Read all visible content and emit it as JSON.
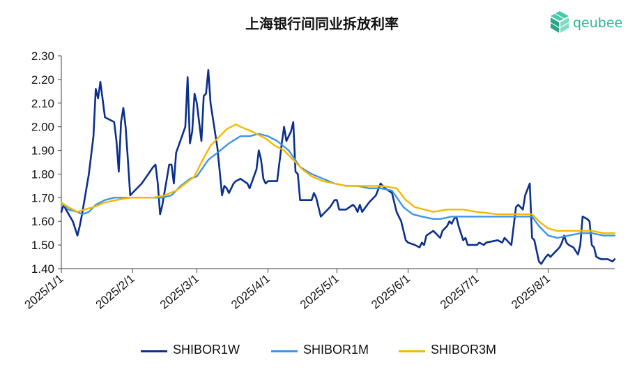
{
  "chart_data": {
    "type": "line",
    "title": "上海银行间同业拆放利率",
    "xlabel": "",
    "ylabel": "",
    "ylim": [
      1.4,
      2.3
    ],
    "xlim": [
      "2025-01-01",
      "2025-08-30"
    ],
    "yticks": [
      "2.30",
      "2.20",
      "2.10",
      "2.00",
      "1.90",
      "1.80",
      "1.70",
      "1.60",
      "1.50",
      "1.40"
    ],
    "xticks": [
      {
        "label": "2025/1/1",
        "date": "2025-01-01"
      },
      {
        "label": "2025/2/1",
        "date": "2025-02-01"
      },
      {
        "label": "2025/3/1",
        "date": "2025-03-01"
      },
      {
        "label": "2025/4/1",
        "date": "2025-04-01"
      },
      {
        "label": "2025/5/1",
        "date": "2025-05-01"
      },
      {
        "label": "2025/6/1",
        "date": "2025-06-01"
      },
      {
        "label": "2025/7/1",
        "date": "2025-07-01"
      },
      {
        "label": "2025/8/1",
        "date": "2025-08-01"
      }
    ],
    "legend_position": "bottom",
    "grid": false,
    "series": [
      {
        "name": "SHIBOR1W",
        "color": "#0a2f8c",
        "points": [
          [
            "2025-01-01",
            1.64
          ],
          [
            "2025-01-02",
            1.67
          ],
          [
            "2025-01-03",
            1.65
          ],
          [
            "2025-01-06",
            1.6
          ],
          [
            "2025-01-08",
            1.54
          ],
          [
            "2025-01-09",
            1.58
          ],
          [
            "2025-01-10",
            1.63
          ],
          [
            "2025-01-13",
            1.8
          ],
          [
            "2025-01-15",
            1.96
          ],
          [
            "2025-01-16",
            2.16
          ],
          [
            "2025-01-17",
            2.12
          ],
          [
            "2025-01-18",
            2.19
          ],
          [
            "2025-01-20",
            2.04
          ],
          [
            "2025-01-24",
            2.02
          ],
          [
            "2025-01-25",
            1.94
          ],
          [
            "2025-01-26",
            1.81
          ],
          [
            "2025-01-27",
            2.02
          ],
          [
            "2025-01-28",
            2.08
          ],
          [
            "2025-01-29",
            2.0
          ],
          [
            "2025-01-30",
            1.86
          ],
          [
            "2025-01-31",
            1.71
          ],
          [
            "2025-02-05",
            1.76
          ],
          [
            "2025-02-10",
            1.83
          ],
          [
            "2025-02-11",
            1.84
          ],
          [
            "2025-02-12",
            1.76
          ],
          [
            "2025-02-13",
            1.63
          ],
          [
            "2025-02-14",
            1.67
          ],
          [
            "2025-02-17",
            1.84
          ],
          [
            "2025-02-18",
            1.84
          ],
          [
            "2025-02-19",
            1.76
          ],
          [
            "2025-02-20",
            1.89
          ],
          [
            "2025-02-24",
            2.0
          ],
          [
            "2025-02-25",
            2.21
          ],
          [
            "2025-02-26",
            1.93
          ],
          [
            "2025-02-27",
            1.98
          ],
          [
            "2025-02-28",
            2.14
          ],
          [
            "2025-03-01",
            2.1
          ],
          [
            "2025-03-03",
            1.94
          ],
          [
            "2025-03-04",
            2.13
          ],
          [
            "2025-03-05",
            2.14
          ],
          [
            "2025-03-06",
            2.24
          ],
          [
            "2025-03-07",
            2.1
          ],
          [
            "2025-03-10",
            1.91
          ],
          [
            "2025-03-11",
            1.81
          ],
          [
            "2025-03-12",
            1.71
          ],
          [
            "2025-03-13",
            1.75
          ],
          [
            "2025-03-14",
            1.74
          ],
          [
            "2025-03-15",
            1.72
          ],
          [
            "2025-03-17",
            1.76
          ],
          [
            "2025-03-18",
            1.77
          ],
          [
            "2025-03-20",
            1.78
          ],
          [
            "2025-03-23",
            1.76
          ],
          [
            "2025-03-24",
            1.74
          ],
          [
            "2025-03-27",
            1.82
          ],
          [
            "2025-03-28",
            1.9
          ],
          [
            "2025-03-29",
            1.86
          ],
          [
            "2025-03-30",
            1.78
          ],
          [
            "2025-03-31",
            1.76
          ],
          [
            "2025-04-01",
            1.77
          ],
          [
            "2025-04-05",
            1.77
          ],
          [
            "2025-04-07",
            1.93
          ],
          [
            "2025-04-08",
            2.0
          ],
          [
            "2025-04-09",
            1.94
          ],
          [
            "2025-04-11",
            1.98
          ],
          [
            "2025-04-12",
            2.02
          ],
          [
            "2025-04-13",
            1.81
          ],
          [
            "2025-04-14",
            1.8
          ],
          [
            "2025-04-15",
            1.69
          ],
          [
            "2025-04-20",
            1.69
          ],
          [
            "2025-04-21",
            1.72
          ],
          [
            "2025-04-22",
            1.7
          ],
          [
            "2025-04-24",
            1.62
          ],
          [
            "2025-04-28",
            1.66
          ],
          [
            "2025-04-30",
            1.69
          ],
          [
            "2025-05-01",
            1.69
          ],
          [
            "2025-05-02",
            1.65
          ],
          [
            "2025-05-05",
            1.65
          ],
          [
            "2025-05-08",
            1.67
          ],
          [
            "2025-05-09",
            1.66
          ],
          [
            "2025-05-10",
            1.64
          ],
          [
            "2025-05-11",
            1.67
          ],
          [
            "2025-05-12",
            1.64
          ],
          [
            "2025-05-15",
            1.68
          ],
          [
            "2025-05-18",
            1.71
          ],
          [
            "2025-05-20",
            1.76
          ],
          [
            "2025-05-22",
            1.74
          ],
          [
            "2025-05-25",
            1.72
          ],
          [
            "2025-05-27",
            1.64
          ],
          [
            "2025-05-29",
            1.6
          ],
          [
            "2025-05-31",
            1.52
          ],
          [
            "2025-06-01",
            1.51
          ],
          [
            "2025-06-04",
            1.5
          ],
          [
            "2025-06-06",
            1.49
          ],
          [
            "2025-06-07",
            1.51
          ],
          [
            "2025-06-08",
            1.5
          ],
          [
            "2025-06-09",
            1.54
          ],
          [
            "2025-06-12",
            1.56
          ],
          [
            "2025-06-15",
            1.53
          ],
          [
            "2025-06-16",
            1.56
          ],
          [
            "2025-06-18",
            1.58
          ],
          [
            "2025-06-19",
            1.6
          ],
          [
            "2025-06-20",
            1.59
          ],
          [
            "2025-06-21",
            1.61
          ],
          [
            "2025-06-22",
            1.62
          ],
          [
            "2025-06-23",
            1.58
          ],
          [
            "2025-06-25",
            1.52
          ],
          [
            "2025-06-26",
            1.53
          ],
          [
            "2025-06-27",
            1.5
          ],
          [
            "2025-07-01",
            1.5
          ],
          [
            "2025-07-02",
            1.51
          ],
          [
            "2025-07-04",
            1.5
          ],
          [
            "2025-07-05",
            1.51
          ],
          [
            "2025-07-10",
            1.52
          ],
          [
            "2025-07-12",
            1.51
          ],
          [
            "2025-07-13",
            1.53
          ],
          [
            "2025-07-16",
            1.5
          ],
          [
            "2025-07-17",
            1.58
          ],
          [
            "2025-07-18",
            1.66
          ],
          [
            "2025-07-19",
            1.67
          ],
          [
            "2025-07-21",
            1.65
          ],
          [
            "2025-07-22",
            1.71
          ],
          [
            "2025-07-24",
            1.76
          ],
          [
            "2025-07-25",
            1.53
          ],
          [
            "2025-07-26",
            1.52
          ],
          [
            "2025-07-28",
            1.43
          ],
          [
            "2025-07-29",
            1.42
          ],
          [
            "2025-07-31",
            1.45
          ],
          [
            "2025-08-01",
            1.46
          ],
          [
            "2025-08-02",
            1.45
          ],
          [
            "2025-08-04",
            1.47
          ],
          [
            "2025-08-06",
            1.49
          ],
          [
            "2025-08-07",
            1.51
          ],
          [
            "2025-08-08",
            1.54
          ],
          [
            "2025-08-09",
            1.51
          ],
          [
            "2025-08-10",
            1.5
          ],
          [
            "2025-08-12",
            1.49
          ],
          [
            "2025-08-14",
            1.46
          ],
          [
            "2025-08-15",
            1.5
          ],
          [
            "2025-08-16",
            1.62
          ],
          [
            "2025-08-18",
            1.61
          ],
          [
            "2025-08-19",
            1.6
          ],
          [
            "2025-08-20",
            1.5
          ],
          [
            "2025-08-21",
            1.49
          ],
          [
            "2025-08-22",
            1.45
          ],
          [
            "2025-08-24",
            1.44
          ],
          [
            "2025-08-25",
            1.44
          ],
          [
            "2025-08-27",
            1.44
          ],
          [
            "2025-08-29",
            1.43
          ],
          [
            "2025-08-30",
            1.44
          ]
        ]
      },
      {
        "name": "SHIBOR1M",
        "color": "#3d95e8",
        "points": [
          [
            "2025-01-01",
            1.68
          ],
          [
            "2025-01-04",
            1.65
          ],
          [
            "2025-01-08",
            1.64
          ],
          [
            "2025-01-10",
            1.63
          ],
          [
            "2025-01-13",
            1.64
          ],
          [
            "2025-01-16",
            1.67
          ],
          [
            "2025-01-20",
            1.69
          ],
          [
            "2025-01-24",
            1.7
          ],
          [
            "2025-01-31",
            1.7
          ],
          [
            "2025-02-05",
            1.7
          ],
          [
            "2025-02-14",
            1.7
          ],
          [
            "2025-02-18",
            1.71
          ],
          [
            "2025-02-22",
            1.75
          ],
          [
            "2025-02-26",
            1.78
          ],
          [
            "2025-03-01",
            1.79
          ],
          [
            "2025-03-06",
            1.86
          ],
          [
            "2025-03-10",
            1.89
          ],
          [
            "2025-03-15",
            1.93
          ],
          [
            "2025-03-20",
            1.96
          ],
          [
            "2025-03-24",
            1.96
          ],
          [
            "2025-03-28",
            1.97
          ],
          [
            "2025-04-01",
            1.96
          ],
          [
            "2025-04-05",
            1.94
          ],
          [
            "2025-04-10",
            1.9
          ],
          [
            "2025-04-15",
            1.83
          ],
          [
            "2025-04-20",
            1.8
          ],
          [
            "2025-04-25",
            1.78
          ],
          [
            "2025-04-30",
            1.76
          ],
          [
            "2025-05-05",
            1.75
          ],
          [
            "2025-05-10",
            1.75
          ],
          [
            "2025-05-15",
            1.74
          ],
          [
            "2025-05-20",
            1.74
          ],
          [
            "2025-05-25",
            1.73
          ],
          [
            "2025-05-30",
            1.66
          ],
          [
            "2025-06-03",
            1.63
          ],
          [
            "2025-06-07",
            1.62
          ],
          [
            "2025-06-12",
            1.61
          ],
          [
            "2025-06-15",
            1.61
          ],
          [
            "2025-06-20",
            1.62
          ],
          [
            "2025-06-30",
            1.62
          ],
          [
            "2025-07-10",
            1.62
          ],
          [
            "2025-07-20",
            1.62
          ],
          [
            "2025-07-25",
            1.62
          ],
          [
            "2025-07-28",
            1.58
          ],
          [
            "2025-08-01",
            1.54
          ],
          [
            "2025-08-05",
            1.53
          ],
          [
            "2025-08-10",
            1.54
          ],
          [
            "2025-08-15",
            1.55
          ],
          [
            "2025-08-20",
            1.55
          ],
          [
            "2025-08-25",
            1.54
          ],
          [
            "2025-08-30",
            1.54
          ]
        ]
      },
      {
        "name": "SHIBOR3M",
        "color": "#f5b800",
        "points": [
          [
            "2025-01-01",
            1.68
          ],
          [
            "2025-01-04",
            1.66
          ],
          [
            "2025-01-08",
            1.64
          ],
          [
            "2025-01-11",
            1.65
          ],
          [
            "2025-01-15",
            1.66
          ],
          [
            "2025-01-20",
            1.68
          ],
          [
            "2025-01-25",
            1.69
          ],
          [
            "2025-01-31",
            1.7
          ],
          [
            "2025-02-10",
            1.7
          ],
          [
            "2025-02-15",
            1.71
          ],
          [
            "2025-02-20",
            1.73
          ],
          [
            "2025-02-24",
            1.76
          ],
          [
            "2025-02-28",
            1.79
          ],
          [
            "2025-03-03",
            1.85
          ],
          [
            "2025-03-07",
            1.92
          ],
          [
            "2025-03-10",
            1.95
          ],
          [
            "2025-03-14",
            1.99
          ],
          [
            "2025-03-18",
            2.01
          ],
          [
            "2025-03-20",
            2.0
          ],
          [
            "2025-03-25",
            1.98
          ],
          [
            "2025-03-31",
            1.95
          ],
          [
            "2025-04-04",
            1.92
          ],
          [
            "2025-04-08",
            1.9
          ],
          [
            "2025-04-12",
            1.86
          ],
          [
            "2025-04-16",
            1.82
          ],
          [
            "2025-04-20",
            1.79
          ],
          [
            "2025-04-25",
            1.77
          ],
          [
            "2025-04-30",
            1.76
          ],
          [
            "2025-05-05",
            1.75
          ],
          [
            "2025-05-10",
            1.75
          ],
          [
            "2025-05-20",
            1.75
          ],
          [
            "2025-05-27",
            1.74
          ],
          [
            "2025-05-31",
            1.69
          ],
          [
            "2025-06-04",
            1.66
          ],
          [
            "2025-06-08",
            1.65
          ],
          [
            "2025-06-12",
            1.64
          ],
          [
            "2025-06-18",
            1.65
          ],
          [
            "2025-06-25",
            1.65
          ],
          [
            "2025-07-01",
            1.64
          ],
          [
            "2025-07-10",
            1.63
          ],
          [
            "2025-07-20",
            1.63
          ],
          [
            "2025-07-25",
            1.63
          ],
          [
            "2025-07-28",
            1.6
          ],
          [
            "2025-08-01",
            1.57
          ],
          [
            "2025-08-05",
            1.56
          ],
          [
            "2025-08-10",
            1.56
          ],
          [
            "2025-08-15",
            1.56
          ],
          [
            "2025-08-20",
            1.56
          ],
          [
            "2025-08-25",
            1.55
          ],
          [
            "2025-08-30",
            1.55
          ]
        ]
      }
    ]
  },
  "logo": {
    "text": "qeubee",
    "color": "#2bb59a"
  }
}
